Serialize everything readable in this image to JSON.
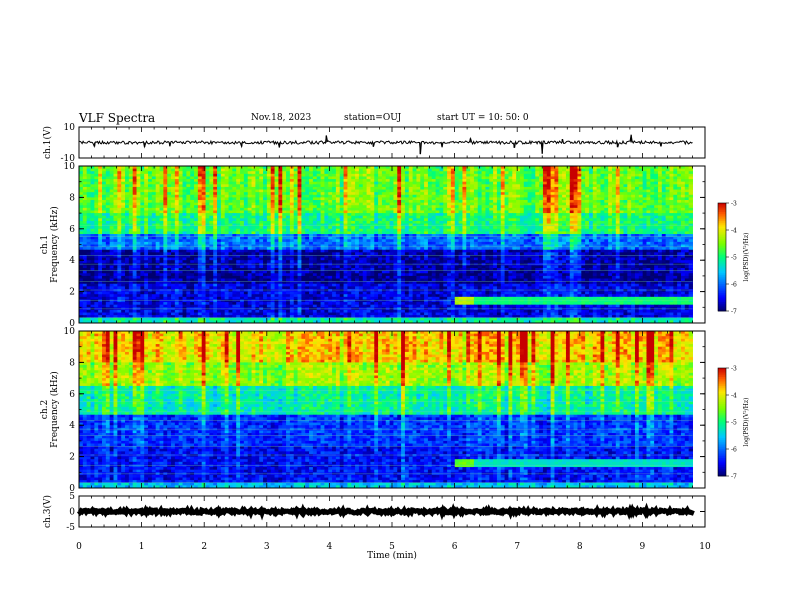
{
  "header": {
    "title": "VLF Spectra",
    "date": "Nov.18, 2023",
    "station": "station=OUJ",
    "start": "start UT =  10: 50: 0"
  },
  "chart_data": [
    {
      "type": "line",
      "panel": "ch1-waveform",
      "ylabel": "ch.1(V)",
      "ylim": [
        -10,
        10
      ],
      "y_ticks": [
        "10",
        "-10"
      ],
      "xlim": [
        0,
        10
      ],
      "x_end": 9.8,
      "series": [
        {
          "baseline": 0,
          "noise_amplitude": 1.0,
          "color": "#000000",
          "spikes": [
            {
              "x": 0.25,
              "y": -2.5
            },
            {
              "x": 1.05,
              "y": -2.8
            },
            {
              "x": 1.45,
              "y": -2.4
            },
            {
              "x": 2.6,
              "y": -2.6
            },
            {
              "x": 3.2,
              "y": -3.2
            },
            {
              "x": 3.95,
              "y": 4.5
            },
            {
              "x": 4.7,
              "y": -2.7
            },
            {
              "x": 5.45,
              "y": -7.5
            },
            {
              "x": 5.8,
              "y": -3.0
            },
            {
              "x": 6.25,
              "y": 2.6
            },
            {
              "x": 6.95,
              "y": -3.4
            },
            {
              "x": 7.4,
              "y": -7.2
            },
            {
              "x": 7.72,
              "y": 2.2
            },
            {
              "x": 8.6,
              "y": -3.0
            },
            {
              "x": 8.82,
              "y": 5.0
            },
            {
              "x": 9.3,
              "y": -2.5
            }
          ]
        }
      ]
    },
    {
      "type": "heatmap",
      "panel": "ch1-spectrogram",
      "ylabel": "ch.1\nFrequency (kHz)",
      "ylim": [
        0,
        10
      ],
      "y_ticks": [
        0,
        2,
        4,
        6,
        8,
        10
      ],
      "xlim": [
        0,
        10
      ],
      "x_end": 9.8,
      "colorbar": {
        "label": "log(PSD)(V²/Hz)",
        "range": [
          -7,
          -3
        ],
        "ticks": [
          -3,
          -4,
          -5,
          -6,
          -7
        ]
      },
      "bands": [
        {
          "f_start": 0.0,
          "f_end": 0.3,
          "log_psd": -5.2
        },
        {
          "f_start": 0.3,
          "f_end": 2.5,
          "log_psd": -6.6
        },
        {
          "f_start": 2.5,
          "f_end": 3.2,
          "log_psd": -6.9
        },
        {
          "f_start": 3.2,
          "f_end": 4.6,
          "log_psd": -6.8
        },
        {
          "f_start": 4.6,
          "f_end": 5.6,
          "log_psd": -6.0
        },
        {
          "f_start": 5.6,
          "f_end": 7.0,
          "log_psd": -5.0
        },
        {
          "f_start": 7.0,
          "f_end": 10.0,
          "log_psd": -4.6
        }
      ],
      "features": [
        {
          "x_start": 6.0,
          "x_end": 9.8,
          "f_start": 1.2,
          "f_end": 1.7,
          "log_psd": -5.0
        },
        {
          "x_start": 6.0,
          "x_end": 6.3,
          "f_start": 1.2,
          "f_end": 1.6,
          "log_psd": -4.2
        }
      ]
    },
    {
      "type": "heatmap",
      "panel": "ch2-spectrogram",
      "ylabel": "ch.2\nFrequency (kHz)",
      "ylim": [
        0,
        10
      ],
      "y_ticks": [
        0,
        2,
        4,
        6,
        8,
        10
      ],
      "xlim": [
        0,
        10
      ],
      "x_end": 9.8,
      "colorbar": {
        "label": "log(PSD)(V²/Hz)",
        "range": [
          -7,
          -3
        ],
        "ticks": [
          -3,
          -4,
          -5,
          -6,
          -7
        ]
      },
      "bands": [
        {
          "f_start": 0.0,
          "f_end": 0.4,
          "log_psd": -5.6
        },
        {
          "f_start": 0.4,
          "f_end": 2.6,
          "log_psd": -6.5
        },
        {
          "f_start": 2.6,
          "f_end": 4.6,
          "log_psd": -6.3
        },
        {
          "f_start": 4.6,
          "f_end": 6.5,
          "log_psd": -5.2
        },
        {
          "f_start": 6.5,
          "f_end": 8.0,
          "log_psd": -4.4
        },
        {
          "f_start": 8.0,
          "f_end": 10.0,
          "log_psd": -3.9
        }
      ],
      "features": [
        {
          "x_start": 6.0,
          "x_end": 9.8,
          "f_start": 1.4,
          "f_end": 1.9,
          "log_psd": -5.3
        },
        {
          "x_start": 6.0,
          "x_end": 6.3,
          "f_start": 1.4,
          "f_end": 1.8,
          "log_psd": -4.6
        }
      ]
    },
    {
      "type": "line",
      "panel": "ch3-waveform",
      "ylabel": "ch.3(V)",
      "ylim": [
        -5,
        5
      ],
      "y_ticks": [
        "5",
        "0",
        "-5"
      ],
      "xlim": [
        0,
        10
      ],
      "x_end": 9.8,
      "series": [
        {
          "baseline": 0,
          "noise_amplitude": 0.5,
          "color": "#000000"
        }
      ]
    }
  ],
  "x_axis": {
    "label": "Time (min)",
    "ticks": [
      0,
      1,
      2,
      3,
      4,
      5,
      6,
      7,
      8,
      9,
      10
    ]
  }
}
